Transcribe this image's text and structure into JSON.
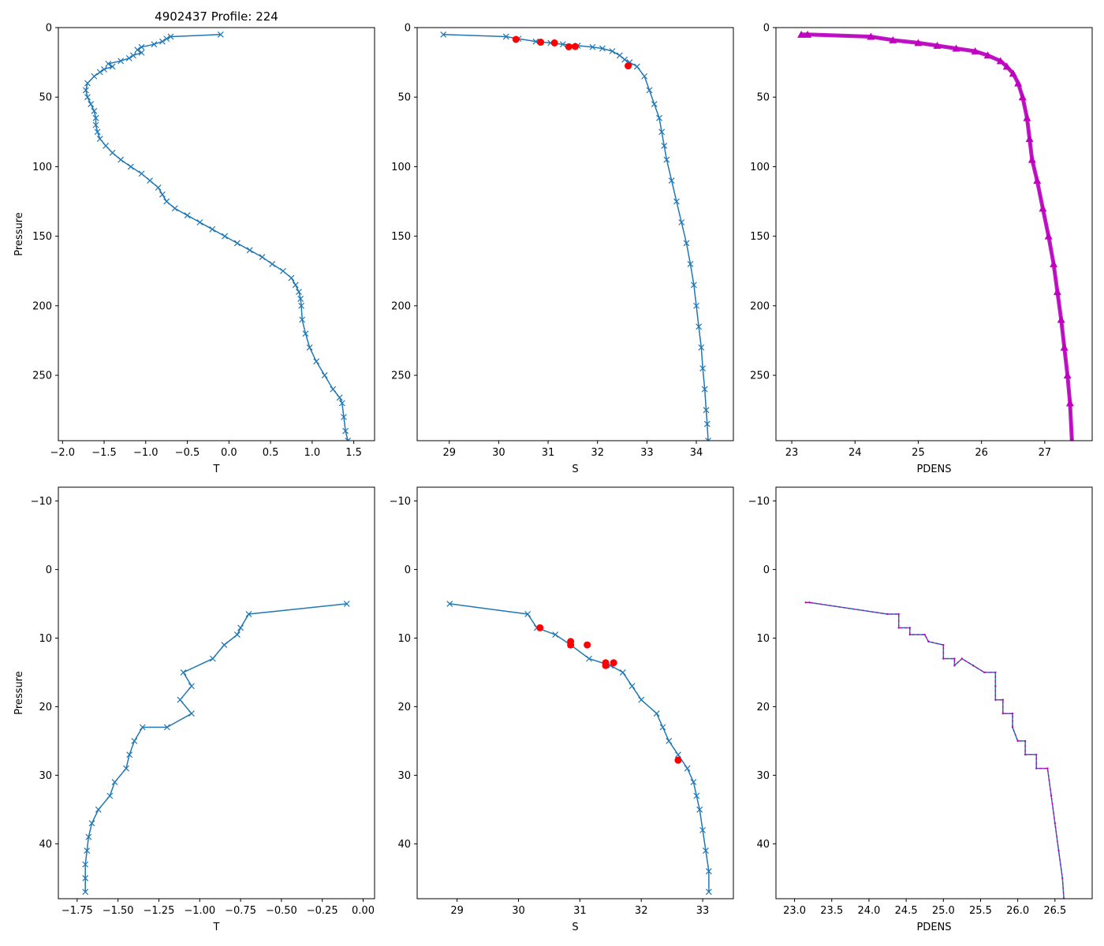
{
  "figure_title": "4902437 Profile: 224",
  "colors": {
    "profile": "#1f77b4",
    "flagged": "#ff0000",
    "density": "#bf00bf"
  },
  "chart_data": [
    {
      "type": "line",
      "panel": "top-left",
      "title": "4902437 Profile: 224",
      "xlabel": "T",
      "ylabel": "Pressure",
      "xlim": [
        -2.05,
        1.75
      ],
      "ylim": [
        297,
        0
      ],
      "y_inverted": true,
      "xticks": [
        -2.0,
        -1.5,
        -1.0,
        -0.5,
        0.0,
        0.5,
        1.0,
        1.5
      ],
      "yticks": [
        0,
        50,
        100,
        150,
        200,
        250
      ],
      "marker": "x",
      "series": [
        {
          "name": "T",
          "points": [
            [
              -0.1,
              5
            ],
            [
              -0.7,
              6.5
            ],
            [
              -0.75,
              8
            ],
            [
              -0.8,
              10
            ],
            [
              -0.9,
              12
            ],
            [
              -1.05,
              14
            ],
            [
              -1.1,
              16
            ],
            [
              -1.05,
              18
            ],
            [
              -1.15,
              20
            ],
            [
              -1.2,
              22
            ],
            [
              -1.3,
              24
            ],
            [
              -1.45,
              26
            ],
            [
              -1.4,
              28
            ],
            [
              -1.5,
              30
            ],
            [
              -1.55,
              32
            ],
            [
              -1.62,
              35
            ],
            [
              -1.7,
              40
            ],
            [
              -1.72,
              45
            ],
            [
              -1.7,
              50
            ],
            [
              -1.66,
              55
            ],
            [
              -1.62,
              60
            ],
            [
              -1.6,
              65
            ],
            [
              -1.6,
              70
            ],
            [
              -1.58,
              75
            ],
            [
              -1.55,
              80
            ],
            [
              -1.48,
              85
            ],
            [
              -1.4,
              90
            ],
            [
              -1.3,
              95
            ],
            [
              -1.18,
              100
            ],
            [
              -1.05,
              105
            ],
            [
              -0.95,
              110
            ],
            [
              -0.85,
              115
            ],
            [
              -0.8,
              120
            ],
            [
              -0.75,
              125
            ],
            [
              -0.65,
              130
            ],
            [
              -0.5,
              135
            ],
            [
              -0.35,
              140
            ],
            [
              -0.2,
              145
            ],
            [
              -0.05,
              150
            ],
            [
              0.1,
              155
            ],
            [
              0.25,
              160
            ],
            [
              0.4,
              165
            ],
            [
              0.52,
              170
            ],
            [
              0.65,
              175
            ],
            [
              0.75,
              180
            ],
            [
              0.8,
              185
            ],
            [
              0.84,
              190
            ],
            [
              0.86,
              195
            ],
            [
              0.87,
              200
            ],
            [
              0.88,
              210
            ],
            [
              0.92,
              220
            ],
            [
              0.97,
              230
            ],
            [
              1.05,
              240
            ],
            [
              1.15,
              250
            ],
            [
              1.25,
              260
            ],
            [
              1.33,
              266
            ],
            [
              1.36,
              270
            ],
            [
              1.38,
              280
            ],
            [
              1.4,
              290
            ],
            [
              1.43,
              297
            ]
          ]
        }
      ]
    },
    {
      "type": "line",
      "panel": "top-middle",
      "xlabel": "S",
      "ylabel": "",
      "xlim": [
        28.35,
        34.75
      ],
      "ylim": [
        297,
        0
      ],
      "y_inverted": true,
      "xticks": [
        29,
        30,
        31,
        32,
        33,
        34
      ],
      "yticks": [
        0,
        50,
        100,
        150,
        200,
        250
      ],
      "marker": "x",
      "series": [
        {
          "name": "S",
          "points": [
            [
              28.88,
              5
            ],
            [
              30.15,
              6.5
            ],
            [
              30.4,
              8
            ],
            [
              30.75,
              10
            ],
            [
              31.05,
              11
            ],
            [
              31.3,
              12
            ],
            [
              31.6,
              13
            ],
            [
              31.9,
              14
            ],
            [
              32.1,
              15
            ],
            [
              32.3,
              17
            ],
            [
              32.45,
              20
            ],
            [
              32.55,
              23
            ],
            [
              32.65,
              25
            ],
            [
              32.8,
              28
            ],
            [
              32.95,
              35
            ],
            [
              33.05,
              45
            ],
            [
              33.15,
              55
            ],
            [
              33.25,
              65
            ],
            [
              33.3,
              75
            ],
            [
              33.35,
              85
            ],
            [
              33.4,
              95
            ],
            [
              33.5,
              110
            ],
            [
              33.6,
              125
            ],
            [
              33.7,
              140
            ],
            [
              33.8,
              155
            ],
            [
              33.88,
              170
            ],
            [
              33.95,
              185
            ],
            [
              34.0,
              200
            ],
            [
              34.05,
              215
            ],
            [
              34.1,
              230
            ],
            [
              34.13,
              245
            ],
            [
              34.17,
              260
            ],
            [
              34.2,
              275
            ],
            [
              34.22,
              285
            ],
            [
              34.24,
              297
            ]
          ]
        },
        {
          "name": "flagged",
          "marker": "o",
          "points": [
            [
              30.35,
              8.5
            ],
            [
              30.85,
              10.5
            ],
            [
              31.13,
              11
            ],
            [
              31.42,
              13.8
            ],
            [
              31.55,
              13.6
            ],
            [
              32.62,
              27.5
            ]
          ]
        }
      ]
    },
    {
      "type": "line",
      "panel": "top-right",
      "xlabel": "PDENS",
      "ylabel": "",
      "xlim": [
        22.75,
        27.75
      ],
      "ylim": [
        297,
        0
      ],
      "y_inverted": true,
      "xticks": [
        23,
        24,
        25,
        26,
        27
      ],
      "yticks": [
        0,
        50,
        100,
        150,
        200,
        250
      ],
      "marker": "^",
      "series": [
        {
          "name": "PDENS",
          "points": [
            [
              23.15,
              5
            ],
            [
              23.25,
              5
            ],
            [
              24.25,
              6.5
            ],
            [
              24.6,
              9
            ],
            [
              25.0,
              11
            ],
            [
              25.3,
              13
            ],
            [
              25.6,
              15
            ],
            [
              25.9,
              17
            ],
            [
              26.1,
              20
            ],
            [
              26.3,
              24
            ],
            [
              26.4,
              28
            ],
            [
              26.5,
              33
            ],
            [
              26.58,
              40
            ],
            [
              26.65,
              50
            ],
            [
              26.72,
              65
            ],
            [
              26.76,
              80
            ],
            [
              26.8,
              95
            ],
            [
              26.88,
              110
            ],
            [
              26.97,
              130
            ],
            [
              27.06,
              150
            ],
            [
              27.14,
              170
            ],
            [
              27.2,
              190
            ],
            [
              27.26,
              210
            ],
            [
              27.31,
              230
            ],
            [
              27.36,
              250
            ],
            [
              27.4,
              270
            ],
            [
              27.43,
              297
            ]
          ]
        }
      ]
    },
    {
      "type": "line",
      "panel": "bottom-left",
      "xlabel": "T",
      "ylabel": "Pressure",
      "xlim": [
        -1.865,
        0.07
      ],
      "ylim": [
        48,
        -12
      ],
      "y_inverted": true,
      "xticks": [
        -1.75,
        -1.5,
        -1.25,
        -1.0,
        -0.75,
        -0.5,
        -0.25,
        0.0
      ],
      "yticks": [
        -10,
        0,
        10,
        20,
        30,
        40
      ],
      "marker": "x",
      "series": [
        {
          "name": "T",
          "points": [
            [
              -0.1,
              5
            ],
            [
              -0.7,
              6.5
            ],
            [
              -0.75,
              8.5
            ],
            [
              -0.77,
              9.5
            ],
            [
              -0.85,
              11
            ],
            [
              -0.92,
              13
            ],
            [
              -1.1,
              15
            ],
            [
              -1.05,
              17
            ],
            [
              -1.12,
              19
            ],
            [
              -1.05,
              21
            ],
            [
              -1.2,
              23
            ],
            [
              -1.35,
              23
            ],
            [
              -1.4,
              25
            ],
            [
              -1.43,
              27
            ],
            [
              -1.45,
              29
            ],
            [
              -1.52,
              31
            ],
            [
              -1.55,
              33
            ],
            [
              -1.62,
              35
            ],
            [
              -1.66,
              37
            ],
            [
              -1.68,
              39
            ],
            [
              -1.69,
              41
            ],
            [
              -1.7,
              43
            ],
            [
              -1.7,
              45
            ],
            [
              -1.7,
              47
            ]
          ]
        }
      ]
    },
    {
      "type": "line",
      "panel": "bottom-middle",
      "xlabel": "S",
      "ylabel": "",
      "xlim": [
        28.35,
        33.5
      ],
      "ylim": [
        48,
        -12
      ],
      "y_inverted": true,
      "xticks": [
        29,
        30,
        31,
        32,
        33
      ],
      "yticks": [
        -10,
        0,
        10,
        20,
        30,
        40
      ],
      "marker": "x",
      "series": [
        {
          "name": "S",
          "points": [
            [
              28.88,
              5
            ],
            [
              30.15,
              6.5
            ],
            [
              30.3,
              8.5
            ],
            [
              30.6,
              9.5
            ],
            [
              30.85,
              11
            ],
            [
              31.15,
              13
            ],
            [
              31.5,
              14
            ],
            [
              31.7,
              15
            ],
            [
              31.85,
              17
            ],
            [
              32.0,
              19
            ],
            [
              32.25,
              21
            ],
            [
              32.35,
              23
            ],
            [
              32.45,
              25
            ],
            [
              32.6,
              27
            ],
            [
              32.75,
              29
            ],
            [
              32.85,
              31
            ],
            [
              32.9,
              33
            ],
            [
              32.95,
              35
            ],
            [
              33.0,
              38
            ],
            [
              33.05,
              41
            ],
            [
              33.1,
              44
            ],
            [
              33.1,
              47
            ]
          ]
        },
        {
          "name": "flagged",
          "marker": "o",
          "points": [
            [
              30.35,
              8.5
            ],
            [
              30.85,
              10.5
            ],
            [
              30.85,
              11
            ],
            [
              31.12,
              11
            ],
            [
              31.42,
              13.6
            ],
            [
              31.55,
              13.6
            ],
            [
              31.42,
              14
            ],
            [
              32.6,
              27.8
            ]
          ]
        }
      ]
    },
    {
      "type": "line",
      "panel": "bottom-right",
      "xlabel": "PDENS",
      "ylabel": "",
      "xlim": [
        22.75,
        27.0
      ],
      "ylim": [
        48,
        -12
      ],
      "y_inverted": true,
      "xticks": [
        23.0,
        23.5,
        24.0,
        24.5,
        25.0,
        25.5,
        26.0,
        26.5
      ],
      "yticks": [
        -10,
        0,
        10,
        20,
        30,
        40
      ],
      "marker": "step",
      "series": [
        {
          "name": "PDENS",
          "points": [
            [
              23.15,
              4.8
            ],
            [
              23.2,
              4.8
            ],
            [
              24.25,
              6.5
            ],
            [
              24.4,
              6.5
            ],
            [
              24.4,
              8.5
            ],
            [
              24.55,
              8.5
            ],
            [
              24.55,
              9.5
            ],
            [
              24.75,
              9.5
            ],
            [
              24.8,
              10.5
            ],
            [
              25.0,
              11
            ],
            [
              25.0,
              13
            ],
            [
              25.15,
              13
            ],
            [
              25.15,
              14
            ],
            [
              25.25,
              13
            ],
            [
              25.4,
              14
            ],
            [
              25.55,
              15
            ],
            [
              25.7,
              15
            ],
            [
              25.7,
              17
            ],
            [
              25.7,
              19
            ],
            [
              25.8,
              19
            ],
            [
              25.8,
              21
            ],
            [
              25.93,
              21
            ],
            [
              25.93,
              23
            ],
            [
              26.0,
              25
            ],
            [
              26.1,
              25
            ],
            [
              26.1,
              27
            ],
            [
              26.25,
              27
            ],
            [
              26.25,
              29
            ],
            [
              26.4,
              29
            ],
            [
              26.45,
              33
            ],
            [
              26.5,
              37
            ],
            [
              26.55,
              41
            ],
            [
              26.6,
              45
            ],
            [
              26.62,
              48
            ]
          ]
        }
      ]
    }
  ]
}
